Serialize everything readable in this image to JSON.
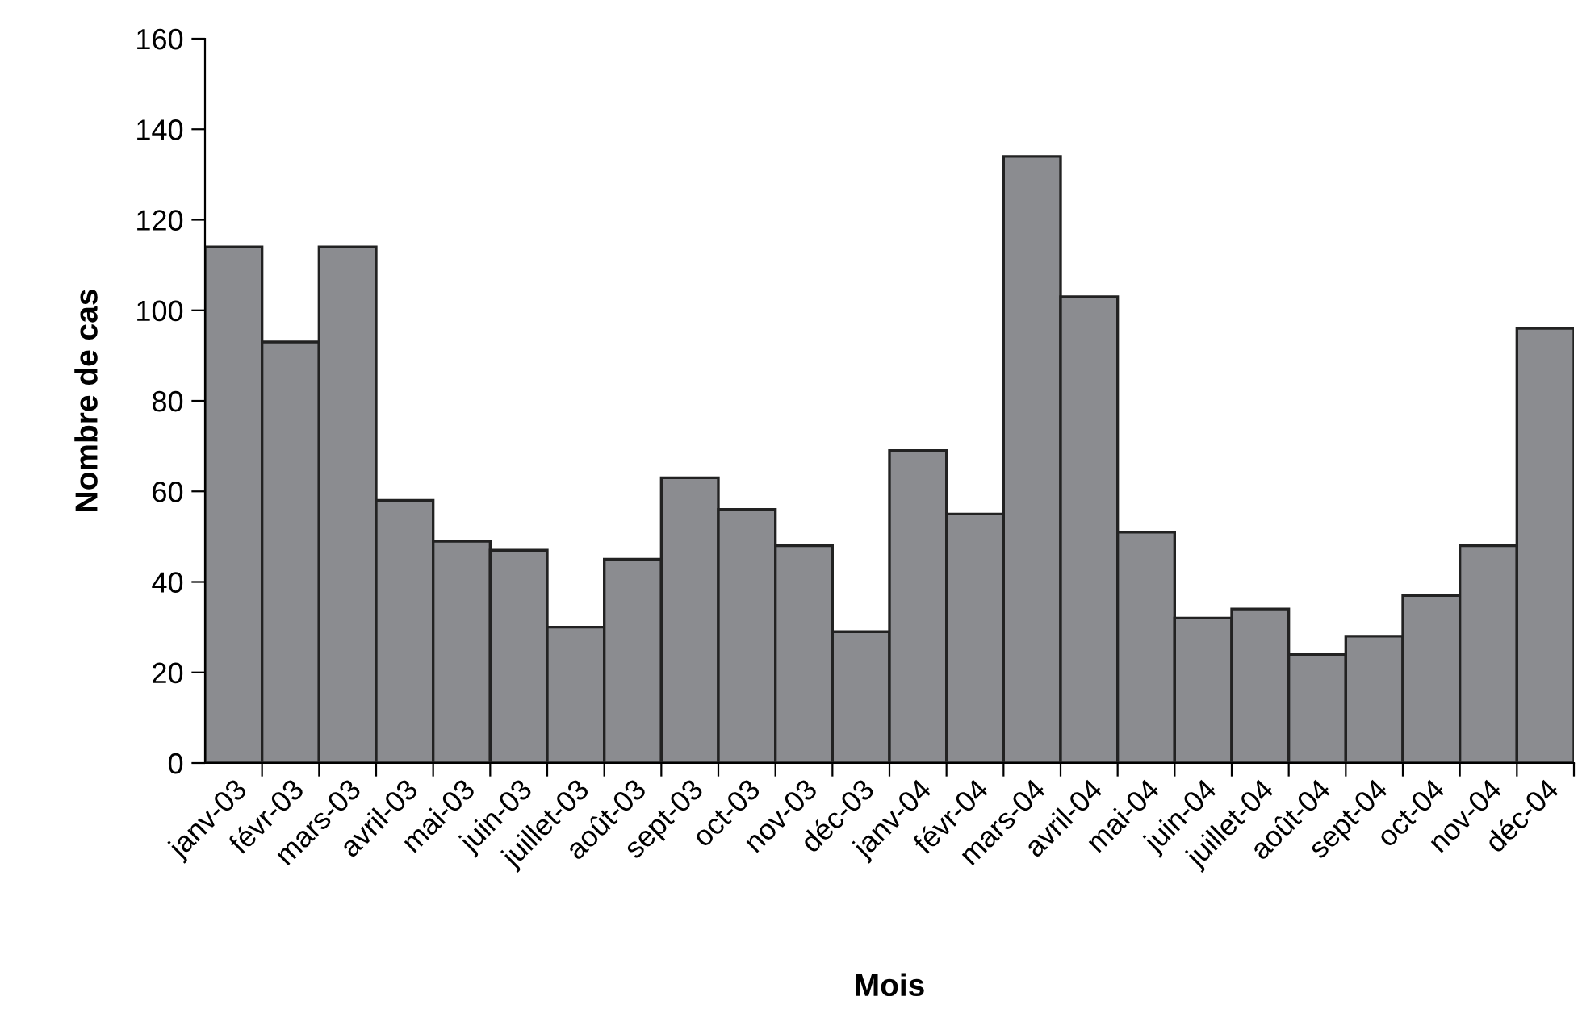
{
  "chart_data": {
    "type": "bar",
    "xlabel": "Mois",
    "ylabel": "Nombre de cas",
    "categories": [
      "janv-03",
      "févr-03",
      "mars-03",
      "avril-03",
      "mai-03",
      "juin-03",
      "juillet-03",
      "août-03",
      "sept-03",
      "oct-03",
      "nov-03",
      "déc-03",
      "janv-04",
      "févr-04",
      "mars-04",
      "avril-04",
      "mai-04",
      "juin-04",
      "juillet-04",
      "août-04",
      "sept-04",
      "oct-04",
      "nov-04",
      "déc-04"
    ],
    "values": [
      114,
      93,
      114,
      58,
      49,
      47,
      30,
      45,
      63,
      56,
      48,
      29,
      69,
      55,
      134,
      103,
      51,
      32,
      34,
      24,
      28,
      37,
      48,
      96
    ],
    "color": "#8b8c90",
    "ylim": [
      0,
      160
    ],
    "yticks": [
      0,
      20,
      40,
      60,
      80,
      100,
      120,
      140,
      160
    ],
    "grid": false,
    "legend": false
  }
}
